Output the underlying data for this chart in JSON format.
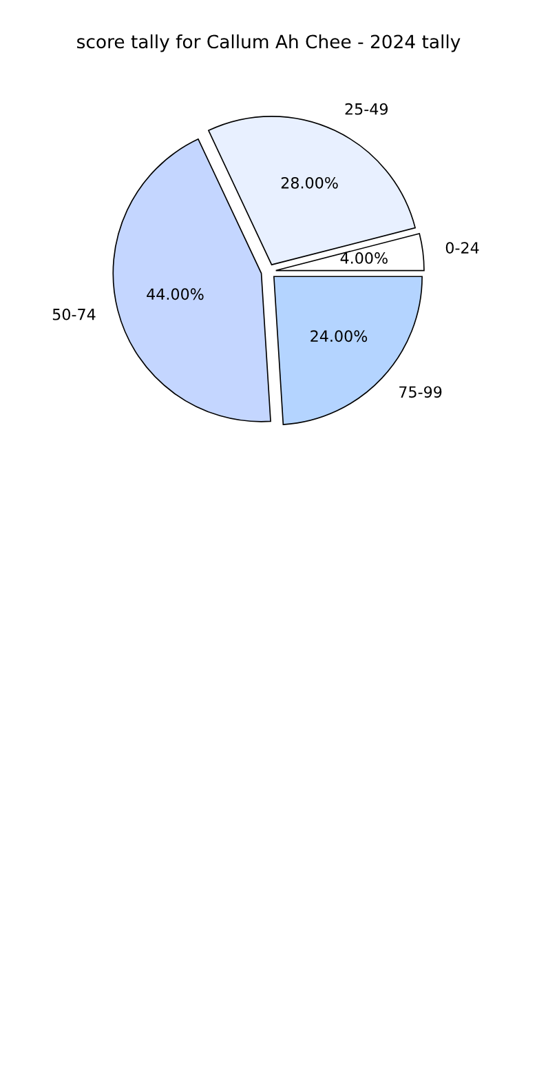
{
  "chart_data": {
    "type": "pie",
    "title": "score tally for Callum Ah Chee - 2024 tally",
    "categories": [
      "0-24",
      "25-49",
      "50-74",
      "75-99"
    ],
    "values": [
      4,
      28,
      44,
      24
    ],
    "value_labels": [
      "4.00%",
      "28.00%",
      "44.00%",
      "24.00%"
    ],
    "colors": [
      "#ffffff",
      "#e8f0ff",
      "#c4d6ff",
      "#b4d4ff"
    ]
  }
}
